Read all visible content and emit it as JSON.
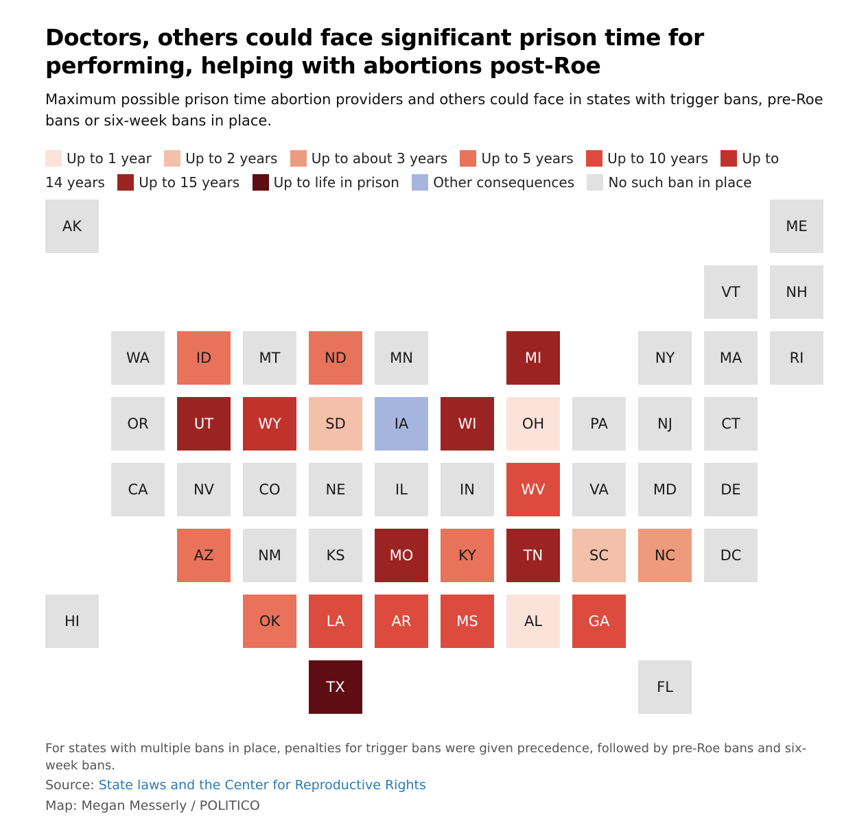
{
  "title": "Doctors, others could face significant prison time for performing, helping with abortions post-Roe",
  "subtitle": "Maximum possible prison time abortion providers and others could face in states with trigger bans, pre-Roe bans or six-week bans in place.",
  "legend": [
    {
      "key": "y1",
      "label": "Up to 1 year",
      "color": "#fbe3da"
    },
    {
      "key": "y2",
      "label": "Up to 2 years",
      "color": "#f3c0aa"
    },
    {
      "key": "y3",
      "label": "Up to about 3 years",
      "color": "#ee9b7d"
    },
    {
      "key": "y5",
      "label": "Up to 5 years",
      "color": "#e8735a"
    },
    {
      "key": "y10",
      "label": "Up to 10 years",
      "color": "#dc4b3d"
    },
    {
      "key": "y14",
      "label": "Up to 14 years",
      "color": "#c0332c"
    },
    {
      "key": "y15",
      "label": "Up to 15 years",
      "color": "#9b2422"
    },
    {
      "key": "life",
      "label": "Up to life in prison",
      "color": "#5e0d12"
    },
    {
      "key": "other",
      "label": "Other consequences",
      "color": "#a6b5de"
    },
    {
      "key": "none",
      "label": "No such ban in place",
      "color": "#e1e1e1"
    }
  ],
  "states": [
    {
      "code": "AK",
      "category": "none",
      "col": 0,
      "row": 0
    },
    {
      "code": "ME",
      "category": "none",
      "col": 11,
      "row": 0
    },
    {
      "code": "VT",
      "category": "none",
      "col": 10,
      "row": 1
    },
    {
      "code": "NH",
      "category": "none",
      "col": 11,
      "row": 1
    },
    {
      "code": "WA",
      "category": "none",
      "col": 1,
      "row": 2
    },
    {
      "code": "ID",
      "category": "y5",
      "col": 2,
      "row": 2
    },
    {
      "code": "MT",
      "category": "none",
      "col": 3,
      "row": 2
    },
    {
      "code": "ND",
      "category": "y5",
      "col": 4,
      "row": 2
    },
    {
      "code": "MN",
      "category": "none",
      "col": 5,
      "row": 2
    },
    {
      "code": "MI",
      "category": "y15",
      "col": 7,
      "row": 2
    },
    {
      "code": "NY",
      "category": "none",
      "col": 9,
      "row": 2
    },
    {
      "code": "MA",
      "category": "none",
      "col": 10,
      "row": 2
    },
    {
      "code": "RI",
      "category": "none",
      "col": 11,
      "row": 2
    },
    {
      "code": "OR",
      "category": "none",
      "col": 1,
      "row": 3
    },
    {
      "code": "UT",
      "category": "y15",
      "col": 2,
      "row": 3
    },
    {
      "code": "WY",
      "category": "y14",
      "col": 3,
      "row": 3
    },
    {
      "code": "SD",
      "category": "y2",
      "col": 4,
      "row": 3
    },
    {
      "code": "IA",
      "category": "other",
      "col": 5,
      "row": 3
    },
    {
      "code": "WI",
      "category": "y15",
      "col": 6,
      "row": 3
    },
    {
      "code": "OH",
      "category": "y1",
      "col": 7,
      "row": 3
    },
    {
      "code": "PA",
      "category": "none",
      "col": 8,
      "row": 3
    },
    {
      "code": "NJ",
      "category": "none",
      "col": 9,
      "row": 3
    },
    {
      "code": "CT",
      "category": "none",
      "col": 10,
      "row": 3
    },
    {
      "code": "CA",
      "category": "none",
      "col": 1,
      "row": 4
    },
    {
      "code": "NV",
      "category": "none",
      "col": 2,
      "row": 4
    },
    {
      "code": "CO",
      "category": "none",
      "col": 3,
      "row": 4
    },
    {
      "code": "NE",
      "category": "none",
      "col": 4,
      "row": 4
    },
    {
      "code": "IL",
      "category": "none",
      "col": 5,
      "row": 4
    },
    {
      "code": "IN",
      "category": "none",
      "col": 6,
      "row": 4
    },
    {
      "code": "WV",
      "category": "y10",
      "col": 7,
      "row": 4
    },
    {
      "code": "VA",
      "category": "none",
      "col": 8,
      "row": 4
    },
    {
      "code": "MD",
      "category": "none",
      "col": 9,
      "row": 4
    },
    {
      "code": "DE",
      "category": "none",
      "col": 10,
      "row": 4
    },
    {
      "code": "AZ",
      "category": "y5",
      "col": 2,
      "row": 5
    },
    {
      "code": "NM",
      "category": "none",
      "col": 3,
      "row": 5
    },
    {
      "code": "KS",
      "category": "none",
      "col": 4,
      "row": 5
    },
    {
      "code": "MO",
      "category": "y15",
      "col": 5,
      "row": 5
    },
    {
      "code": "KY",
      "category": "y5",
      "col": 6,
      "row": 5
    },
    {
      "code": "TN",
      "category": "y15",
      "col": 7,
      "row": 5
    },
    {
      "code": "SC",
      "category": "y2",
      "col": 8,
      "row": 5
    },
    {
      "code": "NC",
      "category": "y3",
      "col": 9,
      "row": 5
    },
    {
      "code": "DC",
      "category": "none",
      "col": 10,
      "row": 5
    },
    {
      "code": "HI",
      "category": "none",
      "col": 0,
      "row": 6
    },
    {
      "code": "OK",
      "category": "y5",
      "col": 3,
      "row": 6
    },
    {
      "code": "LA",
      "category": "y10",
      "col": 4,
      "row": 6
    },
    {
      "code": "AR",
      "category": "y10",
      "col": 5,
      "row": 6
    },
    {
      "code": "MS",
      "category": "y10",
      "col": 6,
      "row": 6
    },
    {
      "code": "AL",
      "category": "y1",
      "col": 7,
      "row": 6
    },
    {
      "code": "GA",
      "category": "y10",
      "col": 8,
      "row": 6
    },
    {
      "code": "TX",
      "category": "life",
      "col": 4,
      "row": 7
    },
    {
      "code": "FL",
      "category": "none",
      "col": 9,
      "row": 7
    }
  ],
  "footnote": "For states with multiple bans in place, penalties for trigger bans were given precedence, followed by pre-Roe bans and six-week bans.",
  "source": {
    "prefix": "Source: ",
    "link_text": "State laws and the Center for Reproductive Rights"
  },
  "credit": "Map: Megan Messerly / POLITICO"
}
